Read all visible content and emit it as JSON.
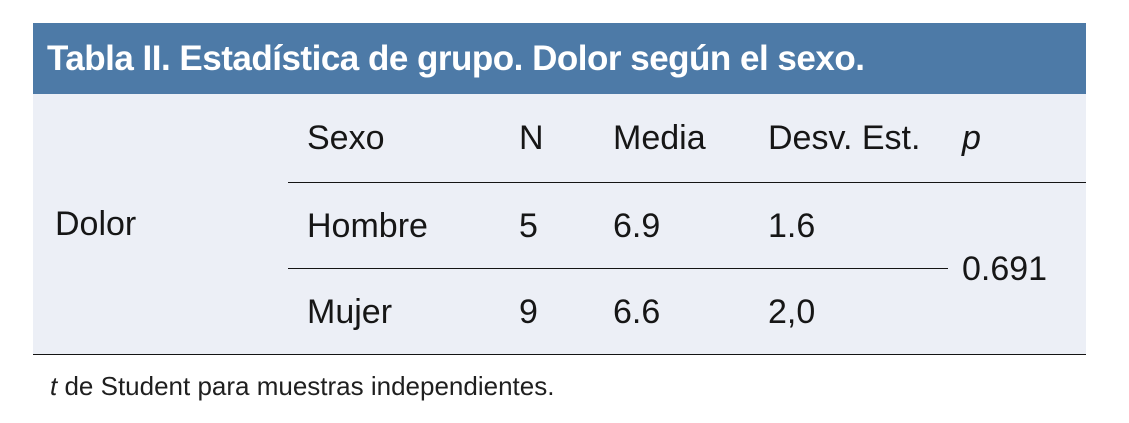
{
  "title_bar": {
    "title": "Tabla II. Estadística de grupo. Dolor según el sexo."
  },
  "table": {
    "row_group_label": "Dolor",
    "columns": [
      {
        "label": "Sexo"
      },
      {
        "label": "N"
      },
      {
        "label": "Media"
      },
      {
        "label": "Desv. Est."
      },
      {
        "label": "p"
      }
    ],
    "rows": [
      {
        "sexo": "Hombre",
        "n": "5",
        "media": "6.9",
        "desv_est": "1.6"
      },
      {
        "sexo": "Mujer",
        "n": "9",
        "media": "6.6",
        "desv_est": "2,0"
      }
    ],
    "p_value": "0.691"
  },
  "footnote": {
    "italic_prefix": "t",
    "text": " de Student para muestras independientes."
  },
  "colors": {
    "header_bg": "#4d7aa7",
    "header_text": "#ffffff",
    "body_bg": "#eceff6",
    "rule": "#141414",
    "text": "#161616"
  }
}
